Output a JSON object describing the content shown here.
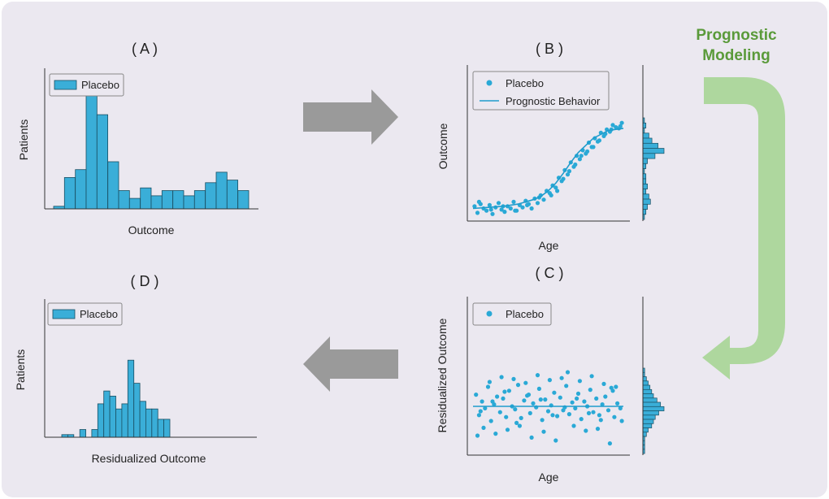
{
  "colors": {
    "background": "#ebe8f0",
    "bar_fill": "#3aaed8",
    "bar_stroke": "#1a4f63",
    "point": "#2aa9d6",
    "line": "#1f9ccc",
    "arrow_gray": "#9a9a9a",
    "flow_green": "#aed79e",
    "flow_text": "#5a9a3a"
  },
  "flow": {
    "title_line1": "Prognostic",
    "title_line2": "Modeling"
  },
  "panels": {
    "A": {
      "label": "( A )",
      "legend": "Placebo",
      "xlabel": "Outcome",
      "ylabel": "Patients",
      "chart_data": {
        "type": "bar",
        "subtype": "histogram",
        "series_name": "Placebo",
        "values": [
          1,
          12,
          15,
          46,
          36,
          18,
          7,
          4,
          8,
          5,
          7,
          7,
          5,
          7,
          10,
          14,
          11,
          7
        ],
        "ylim": [
          0,
          50
        ]
      }
    },
    "B": {
      "label": "( B )",
      "legend_points": "Placebo",
      "legend_line": "Prognostic Behavior",
      "xlabel": "Age",
      "ylabel": "Outcome",
      "chart_data": {
        "type": "scatter",
        "series": [
          {
            "name": "Placebo",
            "x": [
              1,
              3,
              5,
              7,
              9,
              11,
              13,
              15,
              17,
              19,
              21,
              23,
              25,
              27,
              29,
              31,
              33,
              35,
              37,
              39,
              41,
              43,
              45,
              47,
              49,
              51,
              53,
              55,
              57,
              59,
              61,
              63,
              65,
              67,
              69,
              71,
              73,
              75,
              77,
              79,
              81,
              83,
              85,
              87,
              89,
              91,
              93,
              95,
              97,
              99,
              4,
              12,
              20,
              28,
              36,
              44,
              52,
              60,
              68,
              76,
              84,
              92,
              98,
              56,
              64,
              72,
              80,
              88
            ],
            "y": [
              12,
              6,
              14,
              10,
              8,
              13,
              5,
              11,
              15,
              9,
              7,
              12,
              10,
              16,
              8,
              13,
              11,
              17,
              14,
              10,
              19,
              15,
              22,
              18,
              26,
              24,
              31,
              29,
              38,
              35,
              45,
              41,
              52,
              48,
              58,
              55,
              63,
              60,
              70,
              66,
              74,
              71,
              79,
              76,
              82,
              80,
              86,
              84,
              83,
              88,
              16,
              9,
              12,
              8,
              13,
              20,
              22,
              37,
              50,
              62,
              72,
              82,
              85,
              26,
              44,
              58,
              66,
              78
            ]
          },
          {
            "name": "Prognostic Behavior",
            "x": [
              0,
              10,
              20,
              30,
              40,
              45,
              50,
              55,
              60,
              65,
              70,
              80,
              90,
              100
            ],
            "y": [
              10,
              11,
              12,
              14,
              18,
              21,
              26,
              33,
              42,
              52,
              61,
              74,
              81,
              83
            ]
          }
        ],
        "marginal_histogram": [
          1,
          2,
          1,
          4,
          6,
          10,
          14,
          8,
          3,
          2,
          1,
          2,
          2,
          3,
          2,
          4,
          5,
          3,
          2,
          1
        ],
        "xlim": [
          0,
          100
        ],
        "ylim": [
          0,
          100
        ]
      }
    },
    "C": {
      "label": "( C )",
      "legend_points": "Placebo",
      "xlabel": "Age",
      "ylabel": "Residualized Outcome",
      "chart_data": {
        "type": "scatter",
        "series": [
          {
            "name": "Placebo",
            "x": [
              2,
              4,
              6,
              8,
              10,
              12,
              14,
              16,
              18,
              20,
              22,
              24,
              26,
              28,
              30,
              32,
              34,
              36,
              38,
              40,
              42,
              44,
              46,
              48,
              50,
              52,
              54,
              56,
              58,
              60,
              62,
              64,
              66,
              68,
              70,
              72,
              74,
              76,
              78,
              80,
              82,
              84,
              86,
              88,
              90,
              92,
              94,
              96,
              98,
              3,
              7,
              11,
              15,
              19,
              23,
              27,
              31,
              35,
              39,
              43,
              47,
              51,
              55,
              59,
              63,
              67,
              71,
              75,
              79,
              83,
              87,
              91,
              95,
              99,
              5,
              13,
              21,
              29,
              37,
              45,
              53,
              61,
              69,
              77,
              85,
              93
            ],
            "y": [
              62,
              41,
              55,
              48,
              70,
              35,
              52,
              60,
              44,
              58,
              39,
              66,
              50,
              47,
              72,
              38,
              56,
              61,
              43,
              53,
              49,
              68,
              36,
              57,
              45,
              51,
              64,
              40,
              59,
              46,
              71,
              42,
              54,
              48,
              63,
              37,
              55,
              50,
              67,
              44,
              58,
              41,
              52,
              60,
              46,
              69,
              39,
              53,
              48,
              20,
              28,
              75,
              22,
              80,
              26,
              78,
              30,
              74,
              18,
              82,
              24,
              77,
              15,
              79,
              85,
              30,
              76,
              25,
              81,
              27,
              73,
              12,
              70,
              35,
              45,
              55,
              65,
              33,
              62,
              57,
              41,
              49,
              58,
              43,
              36,
              66
            ]
          },
          {
            "name": "Residual line",
            "x": [
              0,
              100
            ],
            "y": [
              50,
              50
            ]
          }
        ],
        "marginal_histogram": [
          1,
          1,
          2,
          3,
          4,
          5,
          6,
          8,
          10,
          12,
          9,
          7,
          6,
          5,
          3,
          2,
          1,
          1,
          1,
          1
        ],
        "xlim": [
          0,
          100
        ],
        "ylim": [
          0,
          100
        ]
      }
    },
    "D": {
      "label": "( D )",
      "legend": "Placebo",
      "xlabel": "Residualized Outcome",
      "ylabel": "Patients",
      "chart_data": {
        "type": "bar",
        "subtype": "histogram",
        "series_name": "Placebo",
        "values": [
          1,
          1,
          0,
          3,
          0,
          3,
          13,
          18,
          16,
          11,
          13,
          30,
          21,
          14,
          11,
          11,
          7,
          7
        ],
        "ylim": [
          0,
          50
        ]
      }
    }
  }
}
